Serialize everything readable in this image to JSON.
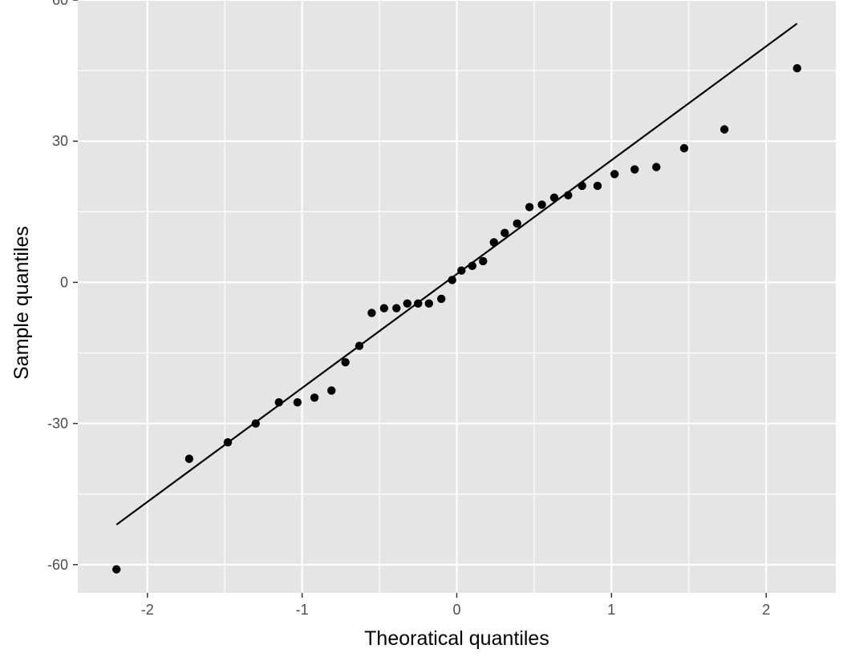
{
  "chart_data": {
    "type": "scatter",
    "title": "",
    "xlabel": "Theoratical quantiles",
    "ylabel": "Sample quantiles",
    "xlim": [
      -2.45,
      2.45
    ],
    "ylim": [
      -66,
      60
    ],
    "xticks": [
      -2,
      -1,
      0,
      1,
      2
    ],
    "xtick_labels": [
      "-2",
      "-1",
      "0",
      "1",
      "2"
    ],
    "yticks": [
      -60,
      -30,
      0,
      30,
      60
    ],
    "ytick_labels": [
      "-60",
      "-30",
      "0",
      "30",
      "60"
    ],
    "grid": true,
    "colors": {
      "panel": "#e5e5e5",
      "grid": "#ffffff",
      "points": "#000000",
      "line": "#000000"
    },
    "reference_line": {
      "x": [
        -2.2,
        2.2
      ],
      "y": [
        -51.5,
        55
      ]
    },
    "points": {
      "x": [
        -2.2,
        -1.73,
        -1.48,
        -1.3,
        -1.15,
        -1.03,
        -0.92,
        -0.81,
        -0.72,
        -0.63,
        -0.55,
        -0.47,
        -0.39,
        -0.32,
        -0.25,
        -0.18,
        -0.1,
        -0.03,
        0.03,
        0.1,
        0.17,
        0.24,
        0.31,
        0.39,
        0.47,
        0.55,
        0.63,
        0.72,
        0.81,
        0.91,
        1.02,
        1.15,
        1.29,
        1.47,
        1.73,
        2.2
      ],
      "y": [
        -61,
        -37.5,
        -34,
        -30,
        -25.5,
        -25.5,
        -24.5,
        -23,
        -17,
        -13.5,
        -6.5,
        -5.5,
        -5.5,
        -4.5,
        -4.5,
        -4.5,
        -3.5,
        0.5,
        2.5,
        3.5,
        4.5,
        8.5,
        10.5,
        12.5,
        16,
        16.5,
        18,
        18.5,
        20.5,
        20.5,
        23,
        24,
        24.5,
        28.5,
        32.5,
        45.5
      ]
    }
  }
}
